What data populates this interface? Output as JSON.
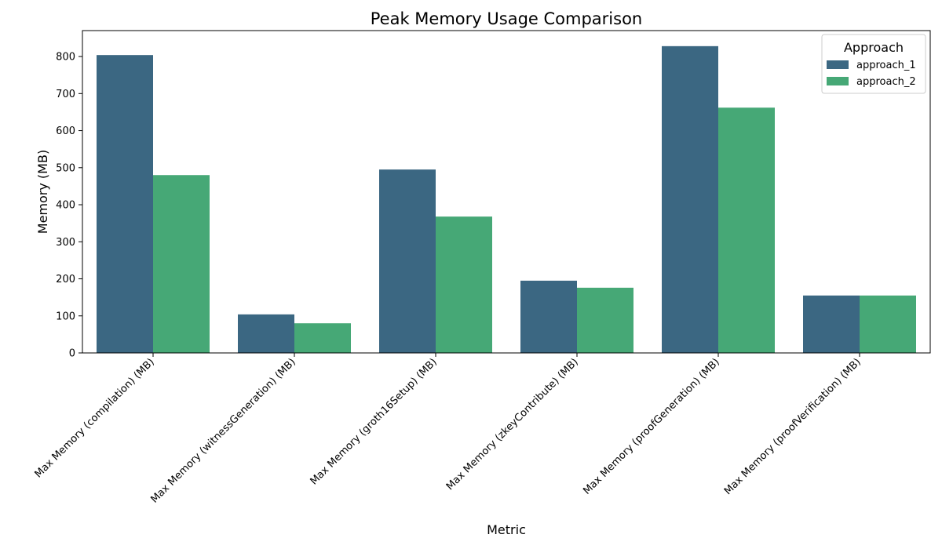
{
  "chart_data": {
    "type": "bar",
    "title": "Peak Memory Usage Comparison",
    "xlabel": "Metric",
    "ylabel": "Memory (MB)",
    "ylim": [
      0,
      870
    ],
    "yticks": [
      0,
      100,
      200,
      300,
      400,
      500,
      600,
      700,
      800
    ],
    "grid": false,
    "legend_position": "top-right",
    "legend_title": "Approach",
    "categories": [
      "Max Memory (compilation) (MB)",
      "Max Memory (witnessGeneration) (MB)",
      "Max Memory (groth16Setup) (MB)",
      "Max Memory (zkeyContribute) (MB)",
      "Max Memory (proofGeneration) (MB)",
      "Max Memory (proofVerification) (MB)"
    ],
    "series": [
      {
        "name": "approach_1",
        "color": "#3b6782",
        "values": [
          804,
          104,
          495,
          195,
          828,
          155
        ]
      },
      {
        "name": "approach_2",
        "color": "#46a876",
        "values": [
          480,
          80,
          368,
          176,
          662,
          155
        ]
      }
    ]
  }
}
